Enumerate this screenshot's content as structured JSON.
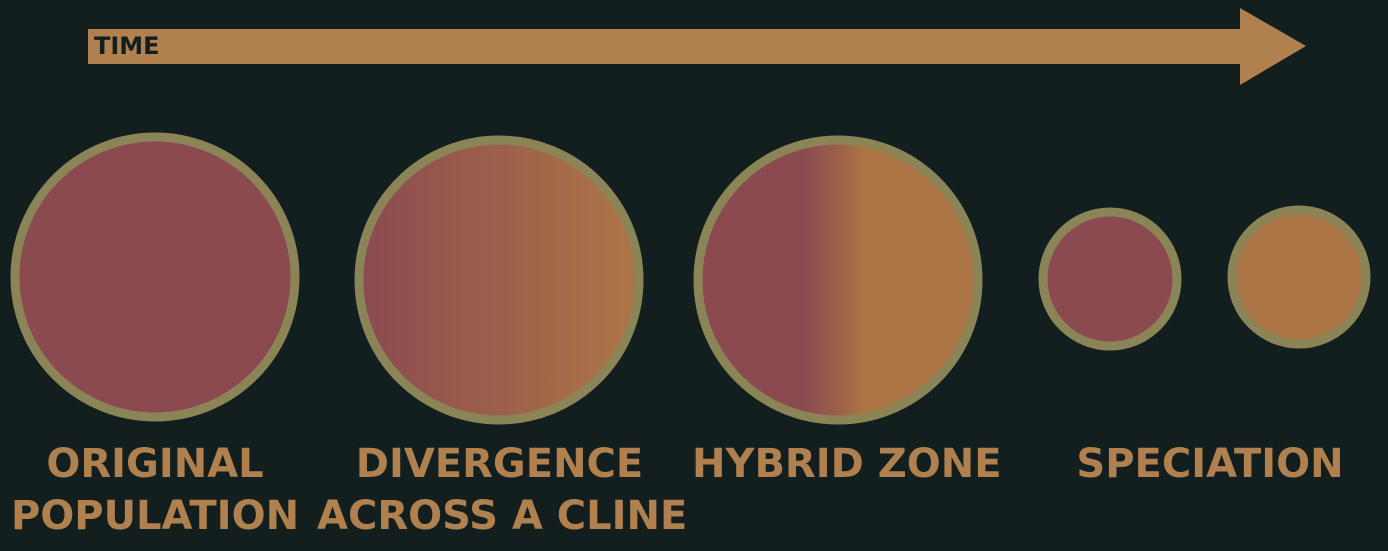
{
  "arrow": {
    "label": "TIME"
  },
  "stages": [
    {
      "id": "original",
      "lines": [
        "ORIGINAL",
        "POPULATION"
      ]
    },
    {
      "id": "divergence",
      "lines": [
        "DIVERGENCE",
        "ACROSS A CLINE"
      ]
    },
    {
      "id": "hybrid",
      "lines": [
        "HYBRID ZONE"
      ]
    },
    {
      "id": "speciation",
      "lines": [
        "SPECIATION"
      ]
    }
  ],
  "colors": {
    "background": "#131f1f",
    "arrow_fill": "#b0814f",
    "circle_border": "#8a8457",
    "population_a": "#8a4a50",
    "population_b": "#ad7646",
    "label_text": "#b0814f"
  }
}
